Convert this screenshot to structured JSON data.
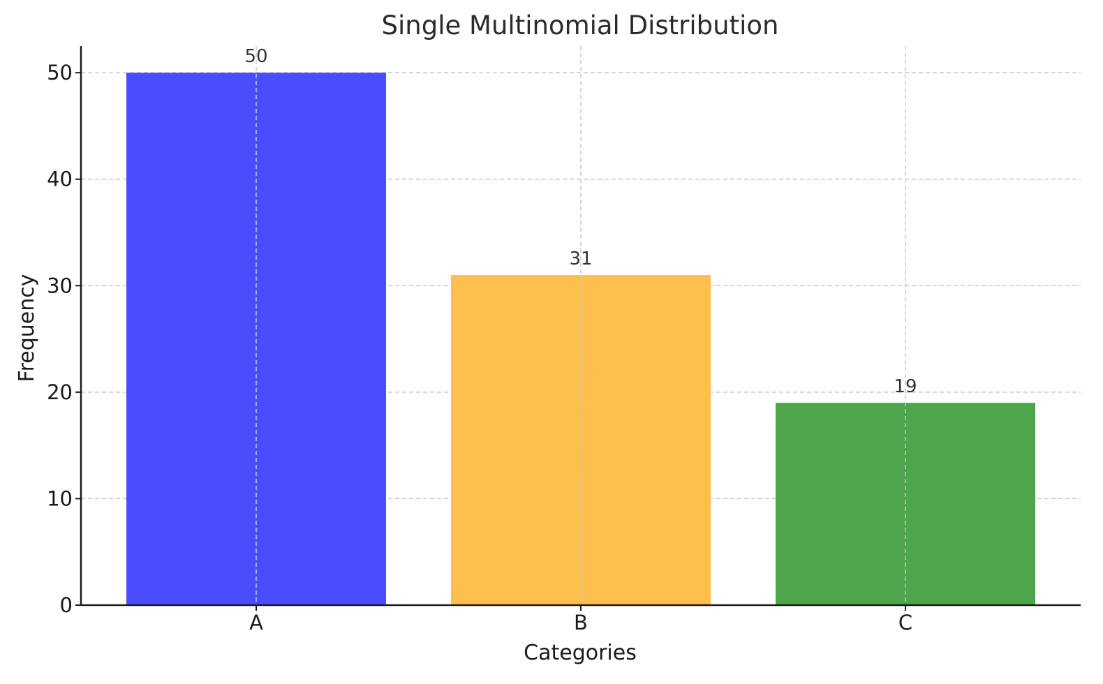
{
  "chart_data": {
    "type": "bar",
    "title": "Single Multinomial Distribution",
    "xlabel": "Categories",
    "ylabel": "Frequency",
    "categories": [
      "A",
      "B",
      "C"
    ],
    "values": [
      50,
      31,
      19
    ],
    "data_labels": [
      "50",
      "31",
      "19"
    ],
    "colors": [
      "#4a4dff",
      "#ffbf4d",
      "#4ca64c"
    ],
    "ylim": [
      0,
      52.5
    ],
    "yticks": [
      0,
      10,
      20,
      30,
      40,
      50
    ],
    "ytick_labels": [
      "0",
      "10",
      "20",
      "30",
      "40",
      "50"
    ],
    "grid": true,
    "legend": "none"
  }
}
